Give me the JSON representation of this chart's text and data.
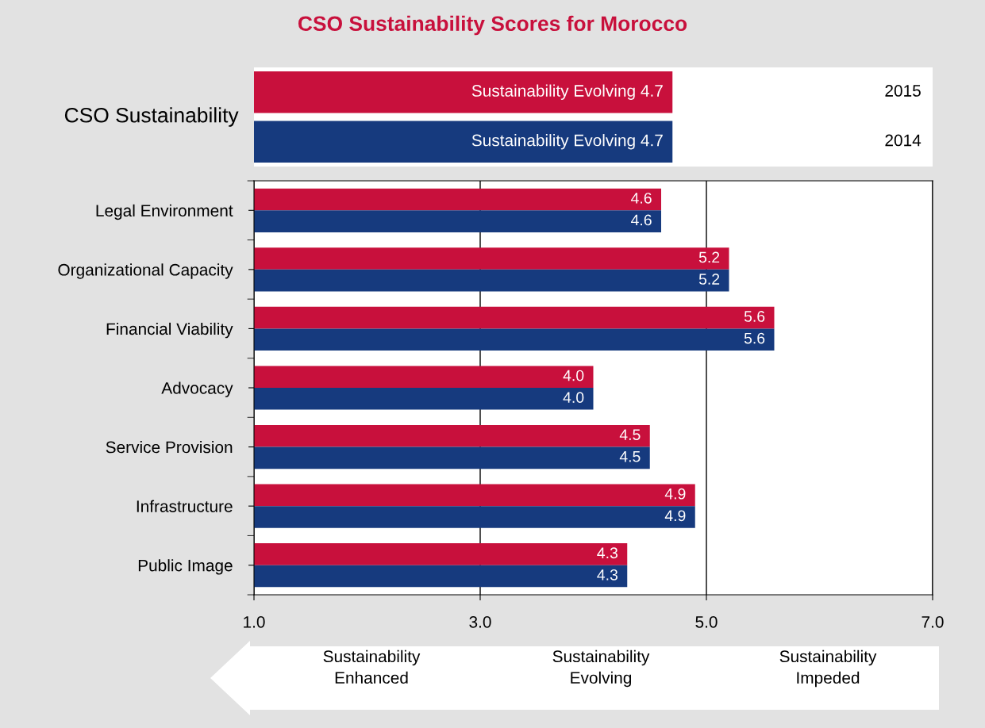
{
  "chart_data": [
    {
      "type": "bar",
      "orientation": "horizontal",
      "title": "CSO Sustainability Scores for Morocco",
      "categories": [
        "CSO Sustainability"
      ],
      "xlim": [
        1,
        7
      ],
      "tick_labels": "y",
      "series": [
        {
          "name": "2015",
          "color": "#c8103c",
          "values": [
            4.7
          ],
          "value_labels": [
            "Sustainability Evolving 4.7"
          ]
        },
        {
          "name": "2014",
          "color": "#163a7e",
          "values": [
            4.7
          ],
          "value_labels": [
            "Sustainability Evolving 4.7"
          ]
        }
      ]
    },
    {
      "type": "bar",
      "orientation": "horizontal",
      "categories": [
        "Legal Environment",
        "Organizational Capacity",
        "Financial Viability",
        "Advocacy",
        "Service Provision",
        "Infrastructure",
        "Public Image"
      ],
      "xlim": [
        1,
        7
      ],
      "xticks": [
        {
          "value": 1,
          "label": "1.0"
        },
        {
          "value": 3,
          "label": "3.0"
        },
        {
          "value": 5,
          "label": "5.0"
        },
        {
          "value": 7,
          "label": "7.0"
        }
      ],
      "grid": "x",
      "series": [
        {
          "color": "#c8103c",
          "values": [
            4.6,
            5.2,
            5.6,
            4.0,
            4.5,
            4.9,
            4.3
          ],
          "value_labels": [
            "4.6",
            "5.2",
            "5.6",
            "4.0",
            "4.5",
            "4.9",
            "4.3"
          ]
        },
        {
          "color": "#163a7e",
          "values": [
            4.6,
            5.2,
            5.6,
            4.0,
            4.5,
            4.9,
            4.3
          ],
          "value_labels": [
            "4.6",
            "5.2",
            "5.6",
            "4.0",
            "4.5",
            "4.9",
            "4.3"
          ]
        }
      ],
      "annotations": [
        "Sustainability\nEnhanced",
        "Sustainability\nEvolving",
        "Sustainability\nImpeded"
      ]
    }
  ]
}
